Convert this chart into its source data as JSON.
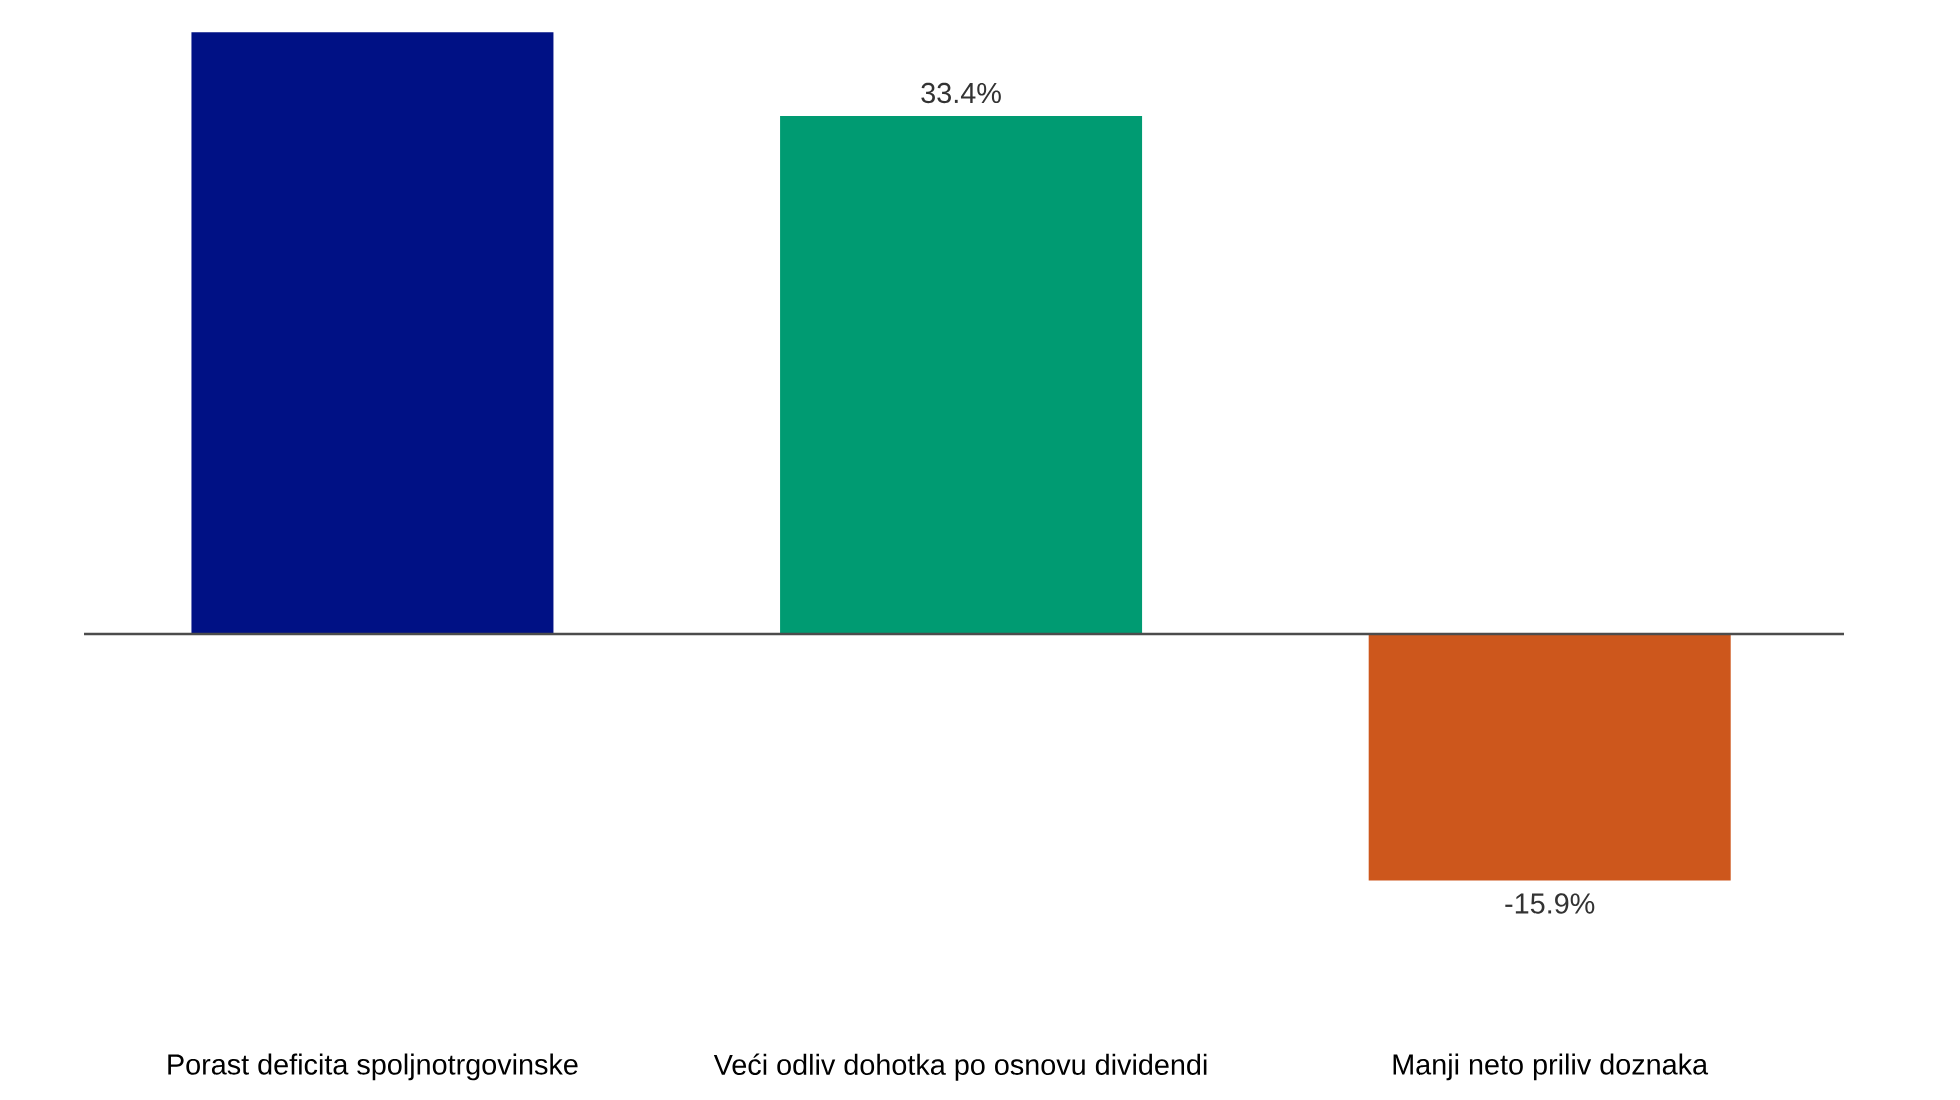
{
  "chart_data": {
    "type": "bar",
    "categories": [
      "Porast deficita spoljnotrgovinske",
      "Veći odliv dohotka po osnovu dividendi",
      "Manji neto priliv doznaka"
    ],
    "values": [
      38.8,
      33.4,
      -15.9
    ],
    "colors": [
      "#001185",
      "#009b72",
      "#cd571c"
    ],
    "value_labels": [
      null,
      "33.4%",
      "-15.9%"
    ]
  }
}
